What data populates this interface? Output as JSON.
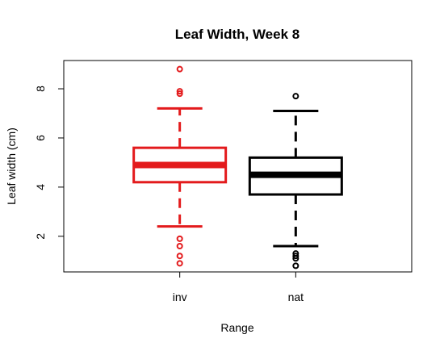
{
  "chart_data": {
    "type": "boxplot",
    "title": "Leaf Width, Week 8",
    "xlabel": "Range",
    "ylabel": "Leaf width (cm)",
    "ylim": [
      0.55,
      9.15
    ],
    "yticks": [
      2,
      4,
      6,
      8
    ],
    "categories": [
      "inv",
      "nat"
    ],
    "boxes": [
      {
        "category": "inv",
        "color": "#e31a1c",
        "whisker_low": 2.4,
        "q1": 4.2,
        "median": 4.9,
        "q3": 5.6,
        "whisker_high": 7.2,
        "outliers": [
          0.9,
          1.2,
          1.6,
          1.9,
          7.8,
          7.9,
          8.8
        ]
      },
      {
        "category": "nat",
        "color": "#000000",
        "whisker_low": 1.6,
        "q1": 3.7,
        "median": 4.5,
        "q3": 5.2,
        "whisker_high": 7.1,
        "outliers": [
          0.8,
          1.1,
          1.2,
          1.3,
          7.7
        ]
      }
    ]
  }
}
